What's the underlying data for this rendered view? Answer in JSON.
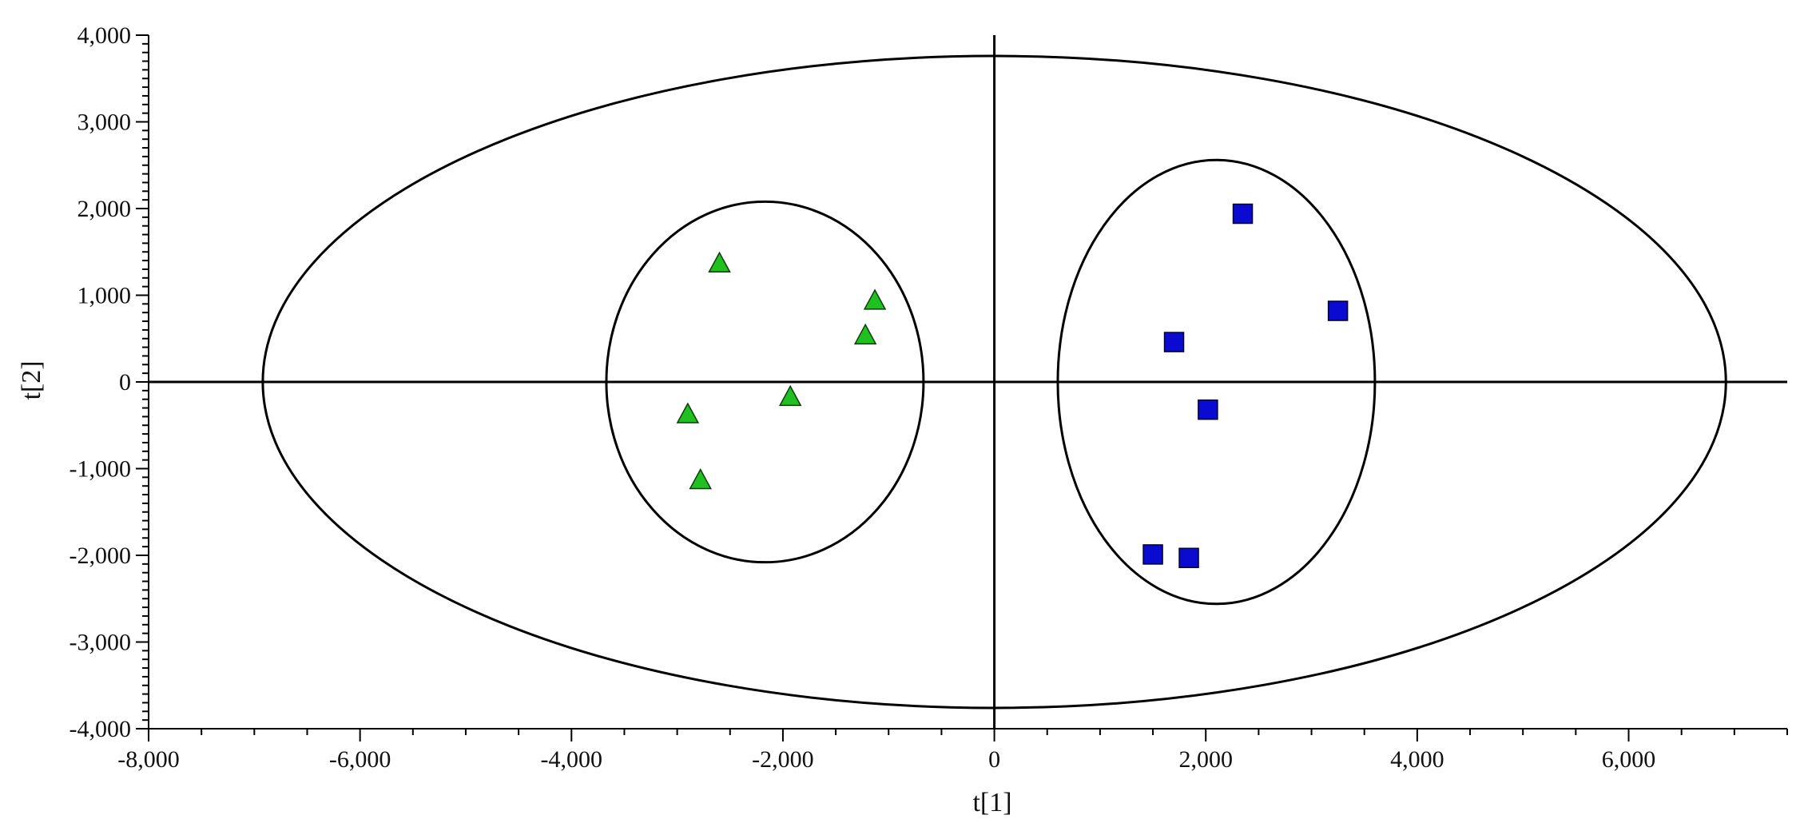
{
  "chart_data": {
    "type": "scatter",
    "title": "",
    "xlabel": "t[1]",
    "ylabel": "t[2]",
    "xlim": [
      -8000,
      7500
    ],
    "ylim": [
      -4000,
      4000
    ],
    "x_ticks": [
      -8000,
      -6000,
      -4000,
      -2000,
      0,
      2000,
      4000,
      6000
    ],
    "y_ticks": [
      -4000,
      -3000,
      -2000,
      -1000,
      0,
      1000,
      2000,
      3000,
      4000
    ],
    "x_tick_labels": [
      "-8,000",
      "-6,000",
      "-4,000",
      "-2,000",
      "0",
      "2,000",
      "4,000",
      "6,000"
    ],
    "y_tick_labels": [
      "-4,000",
      "-3,000",
      "-2,000",
      "-1,000",
      "0",
      "1,000",
      "2,000",
      "3,000",
      "4,000"
    ],
    "grid": false,
    "legend": "none",
    "series": [
      {
        "marker": "triangle",
        "color": "#1fc01f",
        "points": [
          {
            "x": -2600,
            "y": 1380
          },
          {
            "x": -1130,
            "y": 950
          },
          {
            "x": -1220,
            "y": 550
          },
          {
            "x": -1930,
            "y": -160
          },
          {
            "x": -2900,
            "y": -360
          },
          {
            "x": -2780,
            "y": -1120
          }
        ]
      },
      {
        "marker": "square",
        "color": "#0a0ad0",
        "points": [
          {
            "x": 2350,
            "y": 1940
          },
          {
            "x": 3250,
            "y": 820
          },
          {
            "x": 1700,
            "y": 460
          },
          {
            "x": 2020,
            "y": -320
          },
          {
            "x": 1500,
            "y": -1990
          },
          {
            "x": 1840,
            "y": -2030
          }
        ]
      }
    ],
    "ellipses": [
      {
        "cx": 0,
        "cy": 0,
        "rx": 6920,
        "ry": 3760
      },
      {
        "cx": -2170,
        "cy": 0,
        "rx": 1500,
        "ry": 2080
      },
      {
        "cx": 2100,
        "cy": 0,
        "rx": 1500,
        "ry": 2560
      }
    ],
    "reference_lines": {
      "x": 0,
      "y": 0
    }
  }
}
